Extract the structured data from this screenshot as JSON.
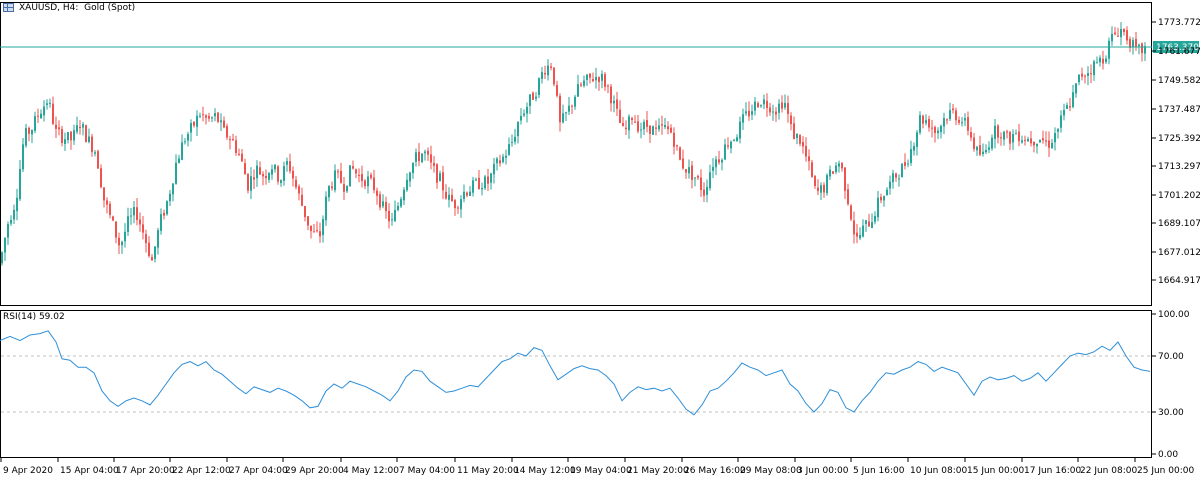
{
  "header": {
    "symbol": "XAUUSD, H4:  Gold (Spot)",
    "indicator_label": "RSI(14) 59.02"
  },
  "colors": {
    "bull": "#26a69a",
    "bear": "#ef5350",
    "rsi_line": "#2e8fd8",
    "price_line": "#26a69a",
    "grid": "#c0c0c0"
  },
  "chart_data": [
    {
      "type": "candlestick",
      "title": "XAUUSD, H4:  Gold (Spot)",
      "ylim": [
        1655.0,
        1783.0
      ],
      "yticks": [
        "1773.772",
        "1761.677",
        "1749.582",
        "1737.487",
        "1725.392",
        "1713.297",
        "1701.202",
        "1689.107",
        "1677.012",
        "1664.917"
      ],
      "current_price": "1763.370",
      "xticks": [
        "9 Apr 2020",
        "15 Apr 04:00",
        "17 Apr 20:00",
        "22 Apr 12:00",
        "27 Apr 04:00",
        "29 Apr 20:00",
        "4 May 12:00",
        "7 May 04:00",
        "11 May 20:00",
        "14 May 12:00",
        "19 May 04:00",
        "21 May 20:00",
        "26 May 16:00",
        "29 May 08:00",
        "3 Jun 00:00",
        "5 Jun 16:00",
        "10 Jun 08:00",
        "15 Jun 00:00",
        "17 Jun 16:00",
        "22 Jun 08:00",
        "25 Jun 00:00"
      ],
      "close_path": [
        [
          0,
          1673
        ],
        [
          8,
          1690
        ],
        [
          16,
          1700
        ],
        [
          24,
          1726
        ],
        [
          32,
          1730
        ],
        [
          40,
          1737
        ],
        [
          48,
          1742
        ],
        [
          56,
          1728
        ],
        [
          64,
          1726
        ],
        [
          72,
          1725
        ],
        [
          80,
          1732
        ],
        [
          88,
          1725
        ],
        [
          96,
          1720
        ],
        [
          104,
          1700
        ],
        [
          112,
          1690
        ],
        [
          120,
          1680
        ],
        [
          128,
          1690
        ],
        [
          136,
          1695
        ],
        [
          144,
          1685
        ],
        [
          152,
          1674
        ],
        [
          160,
          1690
        ],
        [
          168,
          1700
        ],
        [
          176,
          1715
        ],
        [
          184,
          1725
        ],
        [
          192,
          1730
        ],
        [
          200,
          1736
        ],
        [
          208,
          1733
        ],
        [
          216,
          1735
        ],
        [
          224,
          1728
        ],
        [
          232,
          1725
        ],
        [
          240,
          1718
        ],
        [
          248,
          1706
        ],
        [
          256,
          1713
        ],
        [
          264,
          1710
        ],
        [
          272,
          1714
        ],
        [
          280,
          1708
        ],
        [
          288,
          1716
        ],
        [
          296,
          1705
        ],
        [
          304,
          1695
        ],
        [
          312,
          1685
        ],
        [
          320,
          1685
        ],
        [
          328,
          1704
        ],
        [
          336,
          1710
        ],
        [
          344,
          1706
        ],
        [
          352,
          1713
        ],
        [
          360,
          1709
        ],
        [
          368,
          1708
        ],
        [
          376,
          1704
        ],
        [
          384,
          1695
        ],
        [
          392,
          1690
        ],
        [
          400,
          1700
        ],
        [
          408,
          1712
        ],
        [
          416,
          1717
        ],
        [
          424,
          1720
        ],
        [
          432,
          1713
        ],
        [
          440,
          1708
        ],
        [
          448,
          1700
        ],
        [
          456,
          1698
        ],
        [
          464,
          1703
        ],
        [
          472,
          1705
        ],
        [
          480,
          1707
        ],
        [
          488,
          1707
        ],
        [
          496,
          1714
        ],
        [
          504,
          1718
        ],
        [
          512,
          1724
        ],
        [
          520,
          1735
        ],
        [
          528,
          1740
        ],
        [
          536,
          1746
        ],
        [
          544,
          1755
        ],
        [
          552,
          1757
        ],
        [
          560,
          1731
        ],
        [
          568,
          1737
        ],
        [
          576,
          1745
        ],
        [
          584,
          1749
        ],
        [
          592,
          1751
        ],
        [
          600,
          1752
        ],
        [
          608,
          1747
        ],
        [
          616,
          1737
        ],
        [
          624,
          1727
        ],
        [
          632,
          1735
        ],
        [
          640,
          1730
        ],
        [
          648,
          1731
        ],
        [
          656,
          1728
        ],
        [
          664,
          1730
        ],
        [
          672,
          1728
        ],
        [
          680,
          1716
        ],
        [
          688,
          1712
        ],
        [
          696,
          1709
        ],
        [
          704,
          1703
        ],
        [
          712,
          1715
        ],
        [
          720,
          1718
        ],
        [
          728,
          1724
        ],
        [
          736,
          1727
        ],
        [
          744,
          1734
        ],
        [
          752,
          1738
        ],
        [
          760,
          1742
        ],
        [
          768,
          1740
        ],
        [
          776,
          1738
        ],
        [
          784,
          1742
        ],
        [
          792,
          1728
        ],
        [
          800,
          1725
        ],
        [
          808,
          1715
        ],
        [
          816,
          1702
        ],
        [
          824,
          1705
        ],
        [
          832,
          1712
        ],
        [
          840,
          1716
        ],
        [
          848,
          1700
        ],
        [
          856,
          1682
        ],
        [
          864,
          1688
        ],
        [
          872,
          1692
        ],
        [
          880,
          1700
        ],
        [
          888,
          1705
        ],
        [
          896,
          1710
        ],
        [
          904,
          1714
        ],
        [
          912,
          1722
        ],
        [
          920,
          1734
        ],
        [
          928,
          1733
        ],
        [
          936,
          1728
        ],
        [
          944,
          1734
        ],
        [
          952,
          1737
        ],
        [
          960,
          1734
        ],
        [
          968,
          1730
        ],
        [
          976,
          1720
        ],
        [
          984,
          1718
        ],
        [
          992,
          1728
        ],
        [
          1000,
          1729
        ],
        [
          1008,
          1725
        ],
        [
          1016,
          1728
        ],
        [
          1024,
          1726
        ],
        [
          1032,
          1725
        ],
        [
          1040,
          1726
        ],
        [
          1048,
          1723
        ],
        [
          1056,
          1728
        ],
        [
          1064,
          1736
        ],
        [
          1072,
          1742
        ],
        [
          1080,
          1752
        ],
        [
          1088,
          1754
        ],
        [
          1096,
          1757
        ],
        [
          1104,
          1760
        ],
        [
          1112,
          1768
        ],
        [
          1120,
          1772
        ],
        [
          1128,
          1768
        ],
        [
          1136,
          1762
        ],
        [
          1144,
          1763
        ]
      ]
    },
    {
      "type": "line",
      "title": "RSI(14) 59.02",
      "ylim": [
        0,
        100
      ],
      "yticks": [
        "100.00",
        "70.00",
        "30.00",
        "0.00"
      ],
      "levels": [
        70,
        30
      ],
      "points": [
        [
          0,
          81
        ],
        [
          10,
          84
        ],
        [
          20,
          81
        ],
        [
          30,
          85
        ],
        [
          40,
          86
        ],
        [
          48,
          88
        ],
        [
          56,
          80
        ],
        [
          62,
          68
        ],
        [
          70,
          67
        ],
        [
          78,
          62
        ],
        [
          86,
          62
        ],
        [
          94,
          58
        ],
        [
          102,
          45
        ],
        [
          110,
          38
        ],
        [
          118,
          34
        ],
        [
          126,
          38
        ],
        [
          134,
          40
        ],
        [
          142,
          38
        ],
        [
          150,
          35
        ],
        [
          158,
          42
        ],
        [
          166,
          50
        ],
        [
          174,
          58
        ],
        [
          182,
          64
        ],
        [
          190,
          66
        ],
        [
          198,
          63
        ],
        [
          206,
          66
        ],
        [
          214,
          60
        ],
        [
          222,
          57
        ],
        [
          230,
          52
        ],
        [
          238,
          47
        ],
        [
          246,
          43
        ],
        [
          254,
          48
        ],
        [
          262,
          46
        ],
        [
          270,
          44
        ],
        [
          278,
          47
        ],
        [
          286,
          45
        ],
        [
          294,
          42
        ],
        [
          302,
          38
        ],
        [
          310,
          33
        ],
        [
          318,
          34
        ],
        [
          326,
          45
        ],
        [
          334,
          50
        ],
        [
          342,
          47
        ],
        [
          350,
          52
        ],
        [
          358,
          50
        ],
        [
          366,
          48
        ],
        [
          374,
          45
        ],
        [
          382,
          42
        ],
        [
          390,
          38
        ],
        [
          398,
          45
        ],
        [
          406,
          55
        ],
        [
          414,
          60
        ],
        [
          422,
          59
        ],
        [
          430,
          52
        ],
        [
          438,
          48
        ],
        [
          446,
          44
        ],
        [
          454,
          45
        ],
        [
          462,
          47
        ],
        [
          470,
          49
        ],
        [
          478,
          48
        ],
        [
          486,
          54
        ],
        [
          494,
          60
        ],
        [
          502,
          66
        ],
        [
          510,
          68
        ],
        [
          518,
          72
        ],
        [
          526,
          70
        ],
        [
          534,
          76
        ],
        [
          542,
          74
        ],
        [
          550,
          63
        ],
        [
          558,
          53
        ],
        [
          566,
          57
        ],
        [
          574,
          61
        ],
        [
          582,
          63
        ],
        [
          590,
          61
        ],
        [
          598,
          60
        ],
        [
          606,
          56
        ],
        [
          614,
          50
        ],
        [
          622,
          38
        ],
        [
          630,
          44
        ],
        [
          638,
          48
        ],
        [
          646,
          46
        ],
        [
          654,
          47
        ],
        [
          662,
          45
        ],
        [
          670,
          47
        ],
        [
          678,
          40
        ],
        [
          686,
          32
        ],
        [
          694,
          28
        ],
        [
          702,
          35
        ],
        [
          710,
          45
        ],
        [
          718,
          47
        ],
        [
          726,
          52
        ],
        [
          734,
          58
        ],
        [
          742,
          65
        ],
        [
          750,
          62
        ],
        [
          758,
          60
        ],
        [
          766,
          56
        ],
        [
          774,
          58
        ],
        [
          782,
          60
        ],
        [
          790,
          50
        ],
        [
          798,
          45
        ],
        [
          806,
          36
        ],
        [
          814,
          30
        ],
        [
          822,
          36
        ],
        [
          830,
          46
        ],
        [
          838,
          44
        ],
        [
          846,
          33
        ],
        [
          854,
          30
        ],
        [
          862,
          38
        ],
        [
          870,
          44
        ],
        [
          878,
          52
        ],
        [
          886,
          58
        ],
        [
          894,
          57
        ],
        [
          902,
          60
        ],
        [
          910,
          62
        ],
        [
          918,
          66
        ],
        [
          926,
          64
        ],
        [
          934,
          59
        ],
        [
          942,
          62
        ],
        [
          950,
          60
        ],
        [
          958,
          58
        ],
        [
          966,
          50
        ],
        [
          974,
          42
        ],
        [
          982,
          52
        ],
        [
          990,
          55
        ],
        [
          998,
          53
        ],
        [
          1006,
          54
        ],
        [
          1014,
          56
        ],
        [
          1022,
          52
        ],
        [
          1030,
          54
        ],
        [
          1038,
          58
        ],
        [
          1046,
          52
        ],
        [
          1054,
          58
        ],
        [
          1062,
          64
        ],
        [
          1070,
          70
        ],
        [
          1078,
          72
        ],
        [
          1086,
          71
        ],
        [
          1094,
          73
        ],
        [
          1102,
          77
        ],
        [
          1110,
          74
        ],
        [
          1118,
          80
        ],
        [
          1126,
          70
        ],
        [
          1134,
          62
        ],
        [
          1142,
          60
        ],
        [
          1150,
          59
        ]
      ]
    }
  ]
}
